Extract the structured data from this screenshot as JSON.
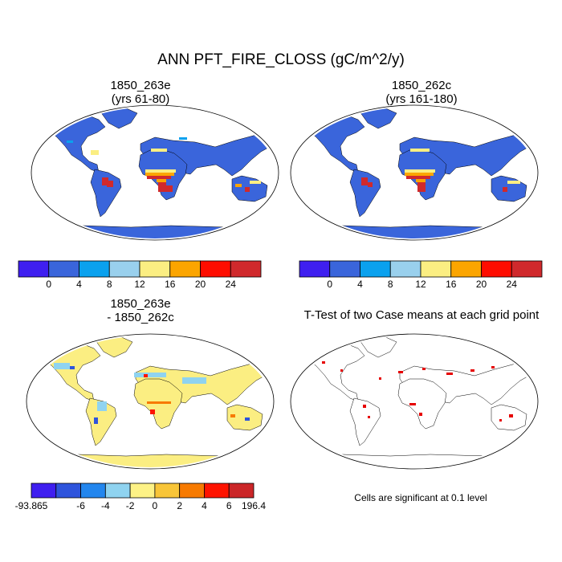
{
  "main_title": "ANN PFT_FIRE_CLOSS (gC/m^2/y)",
  "panels": {
    "top_left": {
      "title_line1": "1850_263e",
      "title_line2": "(yrs 61-80)"
    },
    "top_right": {
      "title_line1": "1850_262c",
      "title_line2": "(yrs 161-180)"
    },
    "bottom_left": {
      "title_line1": "1850_263e",
      "title_line2": "- 1850_262c"
    },
    "bottom_right": {
      "title": "T-Test of two Case means at each grid point"
    }
  },
  "colorbars": {
    "absolute": {
      "colors": [
        "#3f1ff0",
        "#3a65db",
        "#0aa1ee",
        "#99d0ed",
        "#fbee82",
        "#fba500",
        "#fe0d00",
        "#d0292c"
      ],
      "labels": [
        "0",
        "4",
        "8",
        "12",
        "16",
        "20",
        "24"
      ]
    },
    "difference": {
      "colors": [
        "#3f1ff0",
        "#2e54dc",
        "#2386ee",
        "#8fd3f0",
        "#fdf286",
        "#f8c538",
        "#f77a00",
        "#fe1300",
        "#cb2628"
      ],
      "labels": [
        "-93.865",
        "-6",
        "-4",
        "-2",
        "0",
        "2",
        "4",
        "6",
        "196.4"
      ]
    }
  },
  "ttest_note": "Cells are significant at 0.1 level",
  "colors": {
    "ocean": "#ffffff",
    "land_base_absolute": "#3a65db",
    "land_base_difference": "#fbee82",
    "significance": "#e60000",
    "coastline": "#000000"
  }
}
